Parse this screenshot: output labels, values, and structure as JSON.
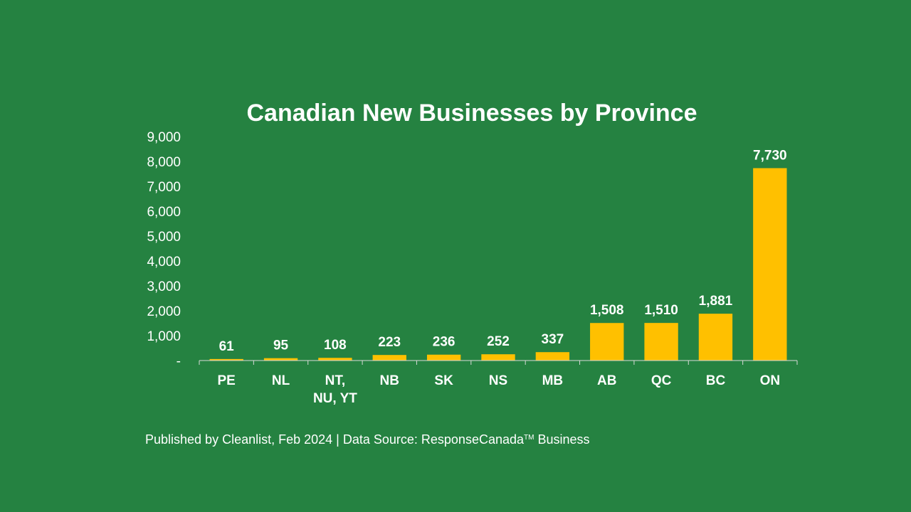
{
  "chart_data": {
    "type": "bar",
    "title": "Canadian New Businesses by Province",
    "categories": [
      "PE",
      "NL",
      "NT,\nNU, YT",
      "NB",
      "SK",
      "NS",
      "MB",
      "AB",
      "QC",
      "BC",
      "ON"
    ],
    "values": [
      61,
      95,
      108,
      223,
      236,
      252,
      337,
      1508,
      1510,
      1881,
      7730
    ],
    "value_labels": [
      "61",
      "95",
      "108",
      "223",
      "236",
      "252",
      "337",
      "1,508",
      "1,510",
      "1,881",
      "7,730"
    ],
    "yticks": [
      "-",
      "1,000",
      "2,000",
      "3,000",
      "4,000",
      "5,000",
      "6,000",
      "7,000",
      "8,000",
      "9,000"
    ],
    "ylim": [
      0,
      9000
    ],
    "xlabel": "",
    "ylabel": "",
    "grid": false,
    "legend": "none",
    "bar_color": "#FFC000"
  },
  "colors": {
    "background": "#258241",
    "bar": "#FFC000",
    "text": "#FFFFFF",
    "axis": "#D9D9D9"
  },
  "footer": {
    "text_before": "Published by Cleanlist, Feb 2024 | Data Source: ResponseCanada",
    "trademark": "TM",
    "text_after": " Business"
  }
}
